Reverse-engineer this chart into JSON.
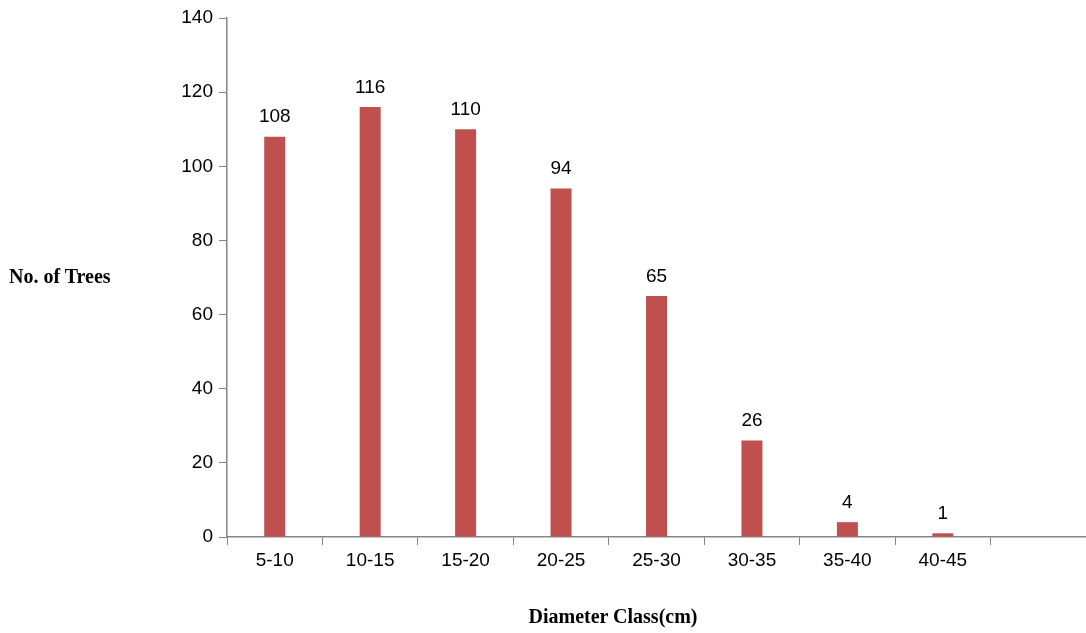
{
  "chart_data": {
    "type": "bar",
    "xlabel": "Diameter Class(cm)",
    "ylabel": "No. of Trees",
    "categories": [
      "5-10",
      "10-15",
      "15-20",
      "20-25",
      "25-30",
      "30-35",
      "35-40",
      "40-45",
      null
    ],
    "values": [
      108,
      116,
      110,
      94,
      65,
      26,
      4,
      1,
      null
    ],
    "color": "#c0504d",
    "ylim": [
      0,
      140
    ],
    "yticks": [
      0,
      20,
      40,
      60,
      80,
      100,
      120,
      140
    ],
    "grid": false,
    "legend": false,
    "data_labels": true
  }
}
